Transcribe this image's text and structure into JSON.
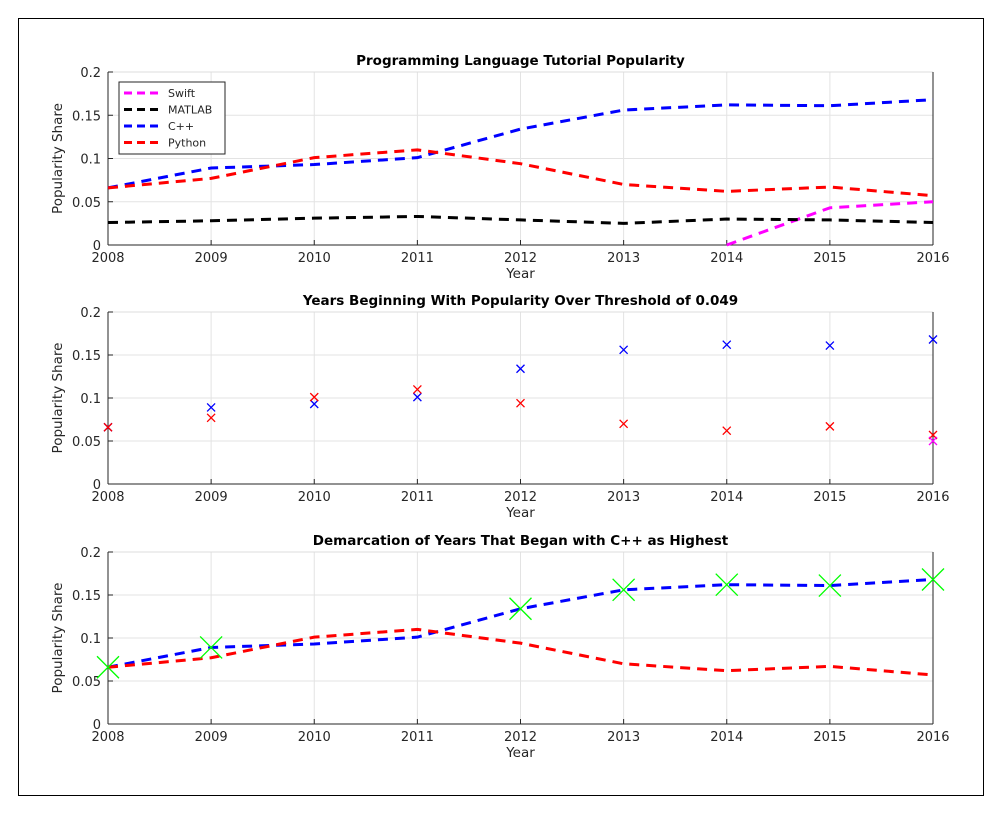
{
  "chart_data": [
    {
      "type": "line",
      "title": "Programming Language Tutorial Popularity",
      "xlabel": "Year",
      "ylabel": "Popularity Share",
      "xlim": [
        2008,
        2016
      ],
      "ylim": [
        0,
        0.2
      ],
      "xticks": [
        "2008",
        "2009",
        "2010",
        "2011",
        "2012",
        "2013",
        "2014",
        "2015",
        "2016"
      ],
      "yticks": [
        "0",
        "0.05",
        "0.1",
        "0.15",
        "0.2"
      ],
      "grid": true,
      "legend": "top-left",
      "series": [
        {
          "name": "Swift",
          "color": "#ff00ff",
          "style": "dashed",
          "x": [
            2014,
            2015,
            2016
          ],
          "values": [
            0.0,
            0.043,
            0.05
          ]
        },
        {
          "name": "MATLAB",
          "color": "#000000",
          "style": "dashed",
          "x": [
            2008,
            2009,
            2010,
            2011,
            2012,
            2013,
            2014,
            2015,
            2016
          ],
          "values": [
            0.026,
            0.028,
            0.031,
            0.033,
            0.029,
            0.025,
            0.03,
            0.029,
            0.026
          ]
        },
        {
          "name": "C++",
          "color": "#0000ff",
          "style": "dashed",
          "x": [
            2008,
            2009,
            2010,
            2011,
            2012,
            2013,
            2014,
            2015,
            2016
          ],
          "values": [
            0.066,
            0.089,
            0.093,
            0.101,
            0.134,
            0.156,
            0.162,
            0.161,
            0.168
          ]
        },
        {
          "name": "Python",
          "color": "#ff0000",
          "style": "dashed",
          "x": [
            2008,
            2009,
            2010,
            2011,
            2012,
            2013,
            2014,
            2015,
            2016
          ],
          "values": [
            0.066,
            0.077,
            0.101,
            0.11,
            0.094,
            0.07,
            0.062,
            0.067,
            0.057
          ]
        }
      ]
    },
    {
      "type": "scatter",
      "title": "Years Beginning With Popularity Over Threshold of 0.049",
      "xlabel": "Year",
      "ylabel": "Popularity Share",
      "xlim": [
        2008,
        2016
      ],
      "ylim": [
        0,
        0.2
      ],
      "xticks": [
        "2008",
        "2009",
        "2010",
        "2011",
        "2012",
        "2013",
        "2014",
        "2015",
        "2016"
      ],
      "yticks": [
        "0",
        "0.05",
        "0.1",
        "0.15",
        "0.2"
      ],
      "grid": true,
      "marker": "x",
      "series": [
        {
          "color": "#0000ff",
          "x": [
            2008,
            2009,
            2010,
            2011,
            2012,
            2013,
            2014,
            2015,
            2016
          ],
          "values": [
            0.066,
            0.089,
            0.093,
            0.101,
            0.134,
            0.156,
            0.162,
            0.161,
            0.168
          ]
        },
        {
          "color": "#ff0000",
          "x": [
            2008,
            2009,
            2010,
            2011,
            2012,
            2013,
            2014,
            2015,
            2016
          ],
          "values": [
            0.066,
            0.077,
            0.101,
            0.11,
            0.094,
            0.07,
            0.062,
            0.067,
            0.057
          ]
        },
        {
          "color": "#ff00ff",
          "x": [
            2016
          ],
          "values": [
            0.05
          ]
        }
      ]
    },
    {
      "type": "line",
      "title": "Demarcation of Years That Began with C++ as Highest",
      "xlabel": "Year",
      "ylabel": "Popularity Share",
      "xlim": [
        2008,
        2016
      ],
      "ylim": [
        0,
        0.2
      ],
      "xticks": [
        "2008",
        "2009",
        "2010",
        "2011",
        "2012",
        "2013",
        "2014",
        "2015",
        "2016"
      ],
      "yticks": [
        "0",
        "0.05",
        "0.1",
        "0.15",
        "0.2"
      ],
      "grid": true,
      "series": [
        {
          "color": "#0000ff",
          "style": "dashed",
          "x": [
            2008,
            2009,
            2010,
            2011,
            2012,
            2013,
            2014,
            2015,
            2016
          ],
          "values": [
            0.066,
            0.089,
            0.093,
            0.101,
            0.134,
            0.156,
            0.162,
            0.161,
            0.168
          ]
        },
        {
          "color": "#ff0000",
          "style": "dashed",
          "x": [
            2008,
            2009,
            2010,
            2011,
            2012,
            2013,
            2014,
            2015,
            2016
          ],
          "values": [
            0.066,
            0.077,
            0.101,
            0.11,
            0.094,
            0.07,
            0.062,
            0.067,
            0.057
          ]
        },
        {
          "color": "#00ff00",
          "style": "marker-x-large",
          "x": [
            2008,
            2009,
            2012,
            2013,
            2014,
            2015,
            2016
          ],
          "values": [
            0.066,
            0.089,
            0.134,
            0.156,
            0.162,
            0.161,
            0.168
          ]
        }
      ]
    }
  ]
}
